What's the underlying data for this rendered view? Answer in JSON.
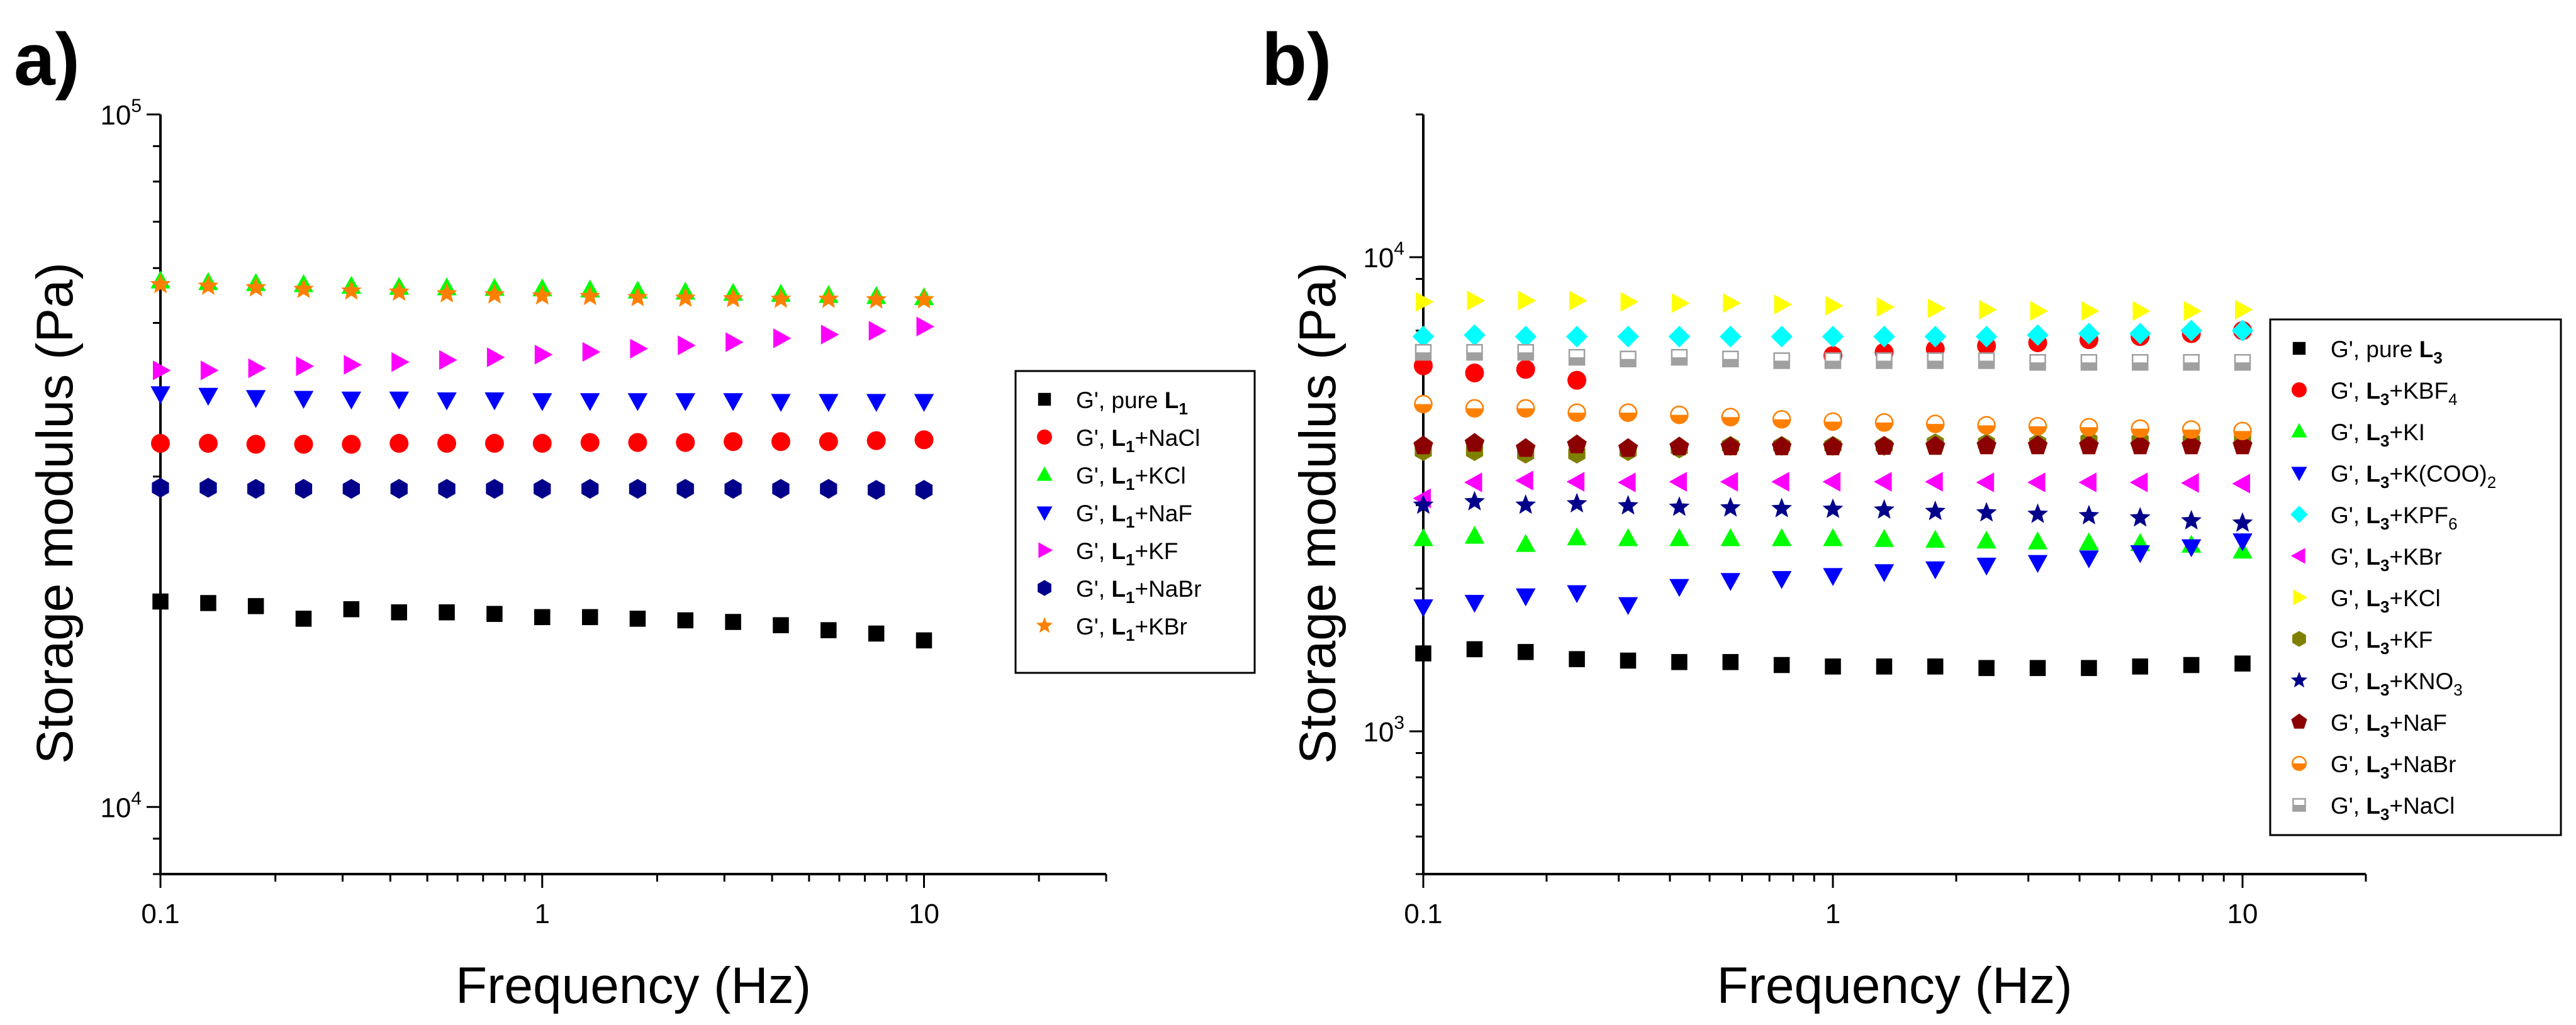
{
  "chart_data": [
    {
      "panel_label": "a)",
      "type": "scatter",
      "xscale": "log",
      "yscale": "log",
      "xlim": [
        0.1,
        30
      ],
      "ylim": [
        8000,
        100000
      ],
      "xlabel": "Frequency (Hz)",
      "ylabel": "Storage modulus (Pa)",
      "x_ticks": [
        {
          "v": 0.1,
          "label": "0.1"
        },
        {
          "v": 1,
          "label": "1"
        },
        {
          "v": 10,
          "label": "10"
        }
      ],
      "y_ticks": [
        {
          "v": 10000,
          "base": "10",
          "exp": "4"
        },
        {
          "v": 100000,
          "base": "10",
          "exp": "5"
        }
      ],
      "legend_position": "right",
      "x": [
        0.1,
        0.1334,
        0.1778,
        0.2371,
        0.3162,
        0.4217,
        0.5623,
        0.7499,
        1,
        1.334,
        1.778,
        2.371,
        3.162,
        4.217,
        5.623,
        7.499,
        10
      ],
      "series": [
        {
          "prefix": "G',  pure ",
          "bold": "L",
          "sub": "1",
          "suffix": "",
          "color": "#000000",
          "marker": "square",
          "values": [
            19800,
            19700,
            19500,
            18700,
            19300,
            19100,
            19100,
            19000,
            18800,
            18800,
            18700,
            18600,
            18500,
            18300,
            18000,
            17800,
            17400
          ]
        },
        {
          "prefix": "G',  ",
          "bold": "L",
          "sub": "1",
          "suffix": "+NaCl",
          "color": "#ff0000",
          "marker": "circle",
          "values": [
            33500,
            33500,
            33400,
            33400,
            33400,
            33500,
            33500,
            33500,
            33500,
            33600,
            33600,
            33600,
            33700,
            33700,
            33700,
            33800,
            33900
          ]
        },
        {
          "prefix": "G',  ",
          "bold": "L",
          "sub": "1",
          "suffix": "+KCl",
          "color": "#00ff00",
          "marker": "triangle-up",
          "values": [
            57500,
            57200,
            57000,
            56800,
            56500,
            56300,
            56200,
            56100,
            56000,
            55800,
            55600,
            55400,
            55200,
            55000,
            54800,
            54600,
            54400
          ]
        },
        {
          "prefix": "G',  ",
          "bold": "L",
          "sub": "1",
          "suffix": "+NaF",
          "color": "#0000ff",
          "marker": "triangle-down",
          "values": [
            39500,
            39300,
            39000,
            38900,
            38800,
            38800,
            38700,
            38700,
            38600,
            38600,
            38600,
            38600,
            38600,
            38500,
            38500,
            38500,
            38500
          ]
        },
        {
          "prefix": "G',  ",
          "bold": "L",
          "sub": "1",
          "suffix": "+KF",
          "color": "#ff00ff",
          "marker": "triangle-right",
          "values": [
            42700,
            42700,
            43000,
            43300,
            43500,
            43900,
            44200,
            44600,
            45000,
            45400,
            45900,
            46400,
            46900,
            47500,
            48100,
            48700,
            49400
          ]
        },
        {
          "prefix": "G',  ",
          "bold": "L",
          "sub": "1",
          "suffix": "+NaBr",
          "color": "#00008b",
          "marker": "hexagon",
          "values": [
            28900,
            28900,
            28800,
            28800,
            28800,
            28800,
            28800,
            28800,
            28800,
            28800,
            28800,
            28800,
            28800,
            28800,
            28800,
            28700,
            28700
          ]
        },
        {
          "prefix": "G',  ",
          "bold": "L",
          "sub": "1",
          "suffix": "+KBr",
          "color": "#ff8000",
          "marker": "star",
          "values": [
            56800,
            56500,
            56200,
            55900,
            55600,
            55400,
            55100,
            54900,
            54700,
            54600,
            54400,
            54300,
            54200,
            54100,
            54100,
            54000,
            54000
          ]
        }
      ]
    },
    {
      "panel_label": "b)",
      "type": "scatter",
      "xscale": "log",
      "yscale": "log",
      "xlim": [
        0.1,
        20
      ],
      "ylim": [
        500,
        20000
      ],
      "xlabel": "Frequency (Hz)",
      "ylabel": "Storage modulus (Pa)",
      "x_ticks": [
        {
          "v": 0.1,
          "label": "0.1"
        },
        {
          "v": 1,
          "label": "1"
        },
        {
          "v": 10,
          "label": "10"
        }
      ],
      "y_ticks": [
        {
          "v": 1000,
          "base": "10",
          "exp": "3"
        },
        {
          "v": 10000,
          "base": "10",
          "exp": "4"
        }
      ],
      "legend_position": "right",
      "x": [
        0.1,
        0.1334,
        0.1778,
        0.2371,
        0.3162,
        0.4217,
        0.5623,
        0.7499,
        1,
        1.334,
        1.778,
        2.371,
        3.162,
        4.217,
        5.623,
        7.499,
        10
      ],
      "series": [
        {
          "prefix": "G',  pure ",
          "bold": "L",
          "sub": "3",
          "suffix": "",
          "color": "#000000",
          "marker": "square",
          "values": [
            1460,
            1490,
            1470,
            1420,
            1410,
            1400,
            1400,
            1380,
            1370,
            1370,
            1370,
            1360,
            1360,
            1360,
            1370,
            1380,
            1390
          ]
        },
        {
          "prefix": "G',  ",
          "bold": "L",
          "sub": "3",
          "suffix": "+KBF",
          "sub2": "4",
          "color": "#ff0000",
          "marker": "circle",
          "values": [
            5900,
            5700,
            5800,
            5500,
            null,
            null,
            null,
            null,
            6200,
            6300,
            6400,
            6500,
            6600,
            6700,
            6800,
            6900,
            7000
          ]
        },
        {
          "prefix": "G',  ",
          "bold": "L",
          "sub": "3",
          "suffix": "+KI",
          "color": "#00ff00",
          "marker": "triangle-up",
          "values": [
            2550,
            2580,
            2480,
            2560,
            2550,
            2550,
            2550,
            2550,
            2550,
            2540,
            2530,
            2520,
            2510,
            2500,
            2490,
            2470,
            2400
          ]
        },
        {
          "prefix": "G',  ",
          "bold": "L",
          "sub": "3",
          "suffix": "+K(COO)",
          "sub2": "2",
          "color": "#0000ff",
          "marker": "triangle-down",
          "values": [
            1830,
            1870,
            1930,
            1960,
            1850,
            2020,
            2080,
            2100,
            2130,
            2170,
            2200,
            2240,
            2270,
            2320,
            2380,
            2450,
            2520
          ]
        },
        {
          "prefix": "G',  ",
          "bold": "L",
          "sub": "3",
          "suffix": "+KPF",
          "sub2": "6",
          "color": "#00ffff",
          "marker": "diamond",
          "values": [
            6800,
            6850,
            6800,
            6800,
            6800,
            6800,
            6800,
            6800,
            6800,
            6800,
            6800,
            6800,
            6850,
            6900,
            6900,
            7000,
            7000
          ]
        },
        {
          "prefix": "G',  ",
          "bold": "L",
          "sub": "3",
          "suffix": "+KBr",
          "color": "#ff00ff",
          "marker": "triangle-left",
          "values": [
            3100,
            3350,
            3380,
            3360,
            3350,
            3360,
            3360,
            3360,
            3360,
            3360,
            3360,
            3350,
            3350,
            3350,
            3350,
            3340,
            3330
          ]
        },
        {
          "prefix": "G',  ",
          "bold": "L",
          "sub": "3",
          "suffix": "+KCl",
          "color": "#ffff00",
          "marker": "triangle-right",
          "values": [
            8050,
            8100,
            8100,
            8100,
            8050,
            8000,
            8000,
            7950,
            7900,
            7850,
            7800,
            7750,
            7700,
            7700,
            7700,
            7700,
            7750
          ]
        },
        {
          "prefix": "G',  ",
          "bold": "L",
          "sub": "3",
          "suffix": "+KF",
          "color": "#808000",
          "marker": "hexagon",
          "values": [
            3900,
            3900,
            3850,
            3850,
            3900,
            3950,
            4000,
            4000,
            4000,
            4000,
            4050,
            4050,
            4050,
            4100,
            4100,
            4100,
            4150
          ]
        },
        {
          "prefix": "G',  ",
          "bold": "L",
          "sub": "3",
          "suffix": "+KNO",
          "sub2": "3",
          "color": "#00008b",
          "marker": "star",
          "values": [
            3000,
            3050,
            3000,
            3020,
            2990,
            2970,
            2960,
            2950,
            2940,
            2930,
            2910,
            2890,
            2870,
            2850,
            2820,
            2780,
            2750
          ]
        },
        {
          "prefix": "G',  ",
          "bold": "L",
          "sub": "3",
          "suffix": "+NaF",
          "color": "#8b0000",
          "marker": "pentagon",
          "values": [
            4000,
            4050,
            3950,
            4020,
            3950,
            3980,
            3980,
            3980,
            3980,
            3990,
            3990,
            4000,
            4000,
            4000,
            4000,
            4000,
            4000
          ]
        },
        {
          "prefix": "G',  ",
          "bold": "L",
          "sub": "3",
          "suffix": "+NaBr",
          "color": "#ff8000",
          "marker": "half-circle",
          "values": [
            4900,
            4800,
            4800,
            4700,
            4700,
            4650,
            4600,
            4550,
            4500,
            4480,
            4450,
            4420,
            4400,
            4380,
            4350,
            4330,
            4300
          ]
        },
        {
          "prefix": "G',  ",
          "bold": "L",
          "sub": "3",
          "suffix": "+NaCl",
          "color": "#a0a0a0",
          "marker": "half-square",
          "values": [
            6300,
            6300,
            6300,
            6150,
            6100,
            6150,
            6100,
            6050,
            6050,
            6050,
            6050,
            6050,
            6000,
            6000,
            6000,
            6000,
            6000
          ]
        }
      ]
    }
  ]
}
